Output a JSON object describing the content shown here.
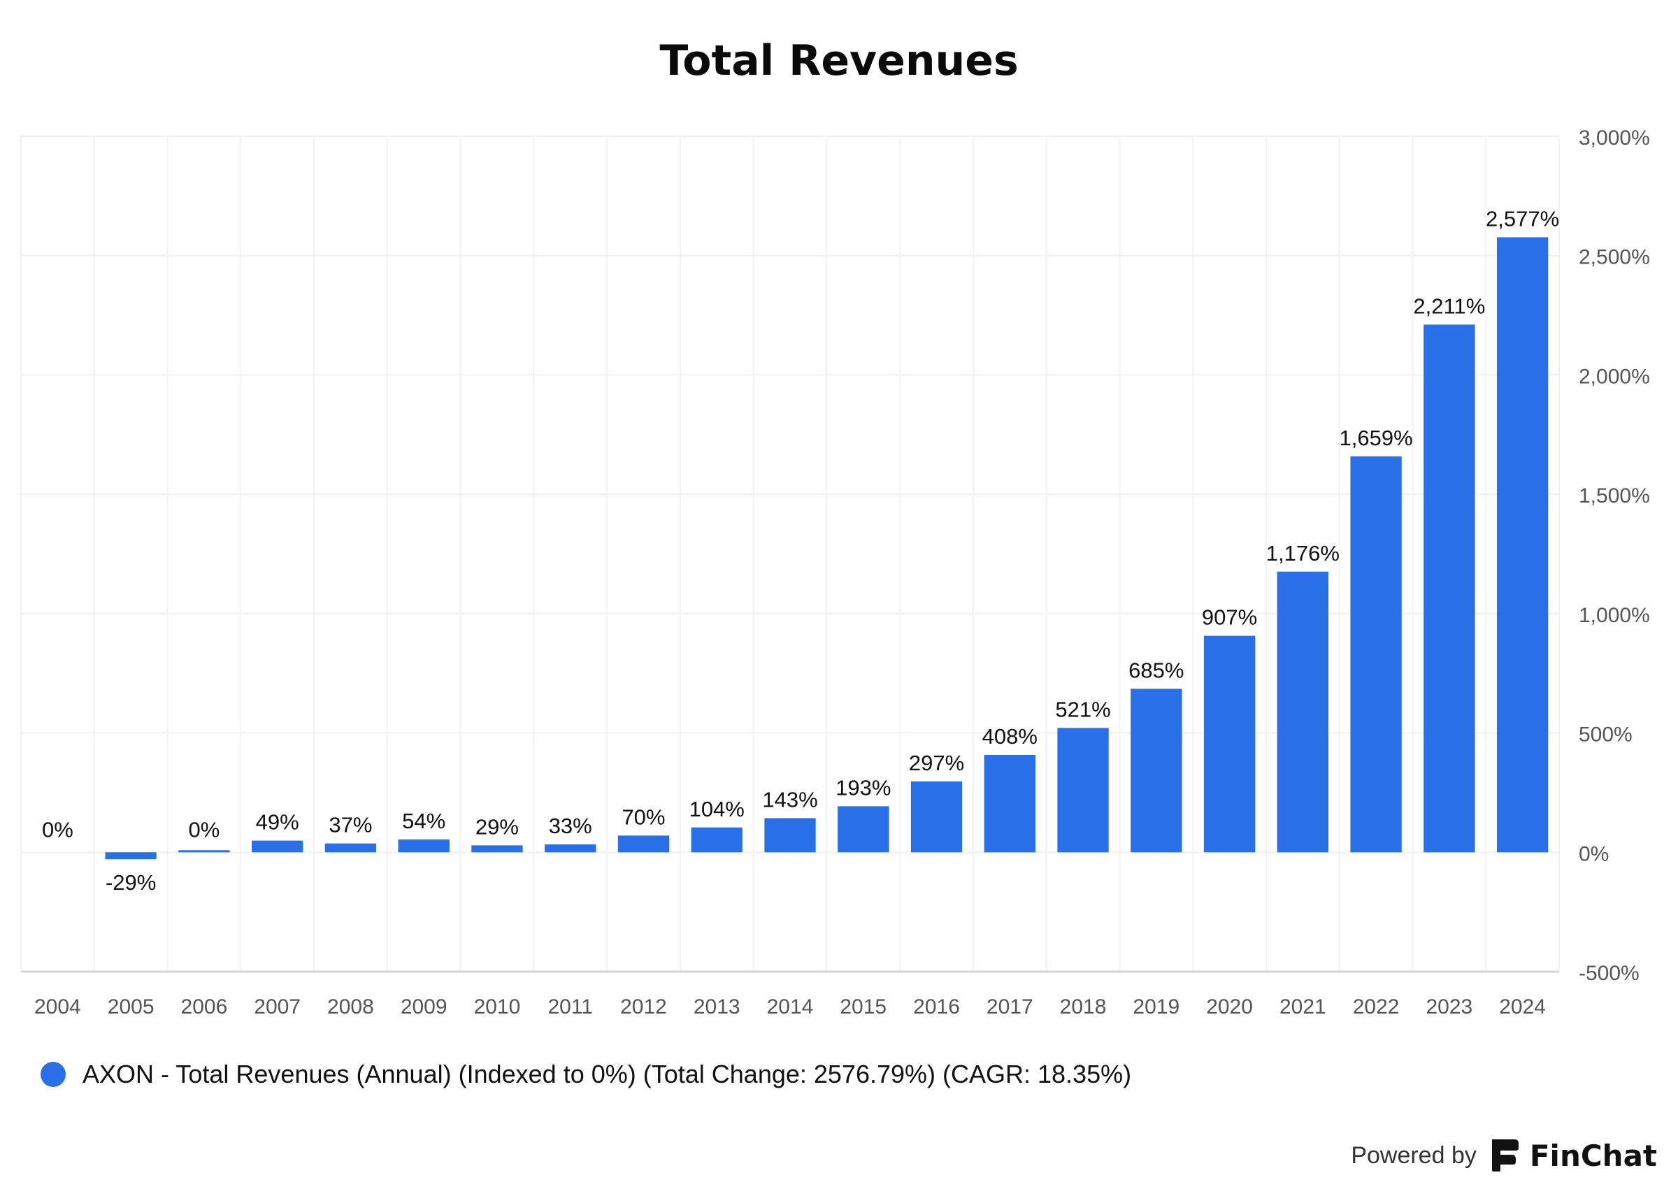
{
  "title": "Total Revenues",
  "legend": {
    "label": "AXON - Total Revenues (Annual) (Indexed to 0%) (Total Change: 2576.79%) (CAGR: 18.35%)",
    "color": "#2970e8"
  },
  "footer": {
    "powered_label": "Powered by",
    "brand": "FinChat",
    "logo_icon": "finchat-logo-icon"
  },
  "chart_data": {
    "type": "bar",
    "title": "Total Revenues",
    "xlabel": "",
    "ylabel": "",
    "categories": [
      "2004",
      "2005",
      "2006",
      "2007",
      "2008",
      "2009",
      "2010",
      "2011",
      "2012",
      "2013",
      "2014",
      "2015",
      "2016",
      "2017",
      "2018",
      "2019",
      "2020",
      "2021",
      "2022",
      "2023",
      "2024"
    ],
    "series": [
      {
        "name": "AXON - Total Revenues (Annual) (Indexed to 0%) (Total Change: 2576.79%) (CAGR: 18.35%)",
        "values": [
          0,
          -29,
          0,
          49,
          37,
          54,
          29,
          33,
          70,
          104,
          143,
          193,
          297,
          408,
          521,
          685,
          907,
          1176,
          1659,
          2211,
          2577
        ],
        "labels": [
          "0%",
          "-29%",
          "0%",
          "49%",
          "37%",
          "54%",
          "29%",
          "33%",
          "70%",
          "104%",
          "143%",
          "193%",
          "297%",
          "408%",
          "521%",
          "685%",
          "907%",
          "1,176%",
          "1,659%",
          "2,211%",
          "2,577%"
        ]
      }
    ],
    "ylim": [
      -500,
      3000
    ],
    "yticks": [
      -500,
      0,
      500,
      1000,
      1500,
      2000,
      2500,
      3000
    ],
    "ytick_labels": [
      "-500%",
      "0%",
      "500%",
      "1,000%",
      "1,500%",
      "2,000%",
      "2,500%",
      "3,000%"
    ],
    "y_axis_side": "right",
    "grid": true,
    "legend_position": "bottom-left",
    "bar_color": "#2970e8"
  }
}
